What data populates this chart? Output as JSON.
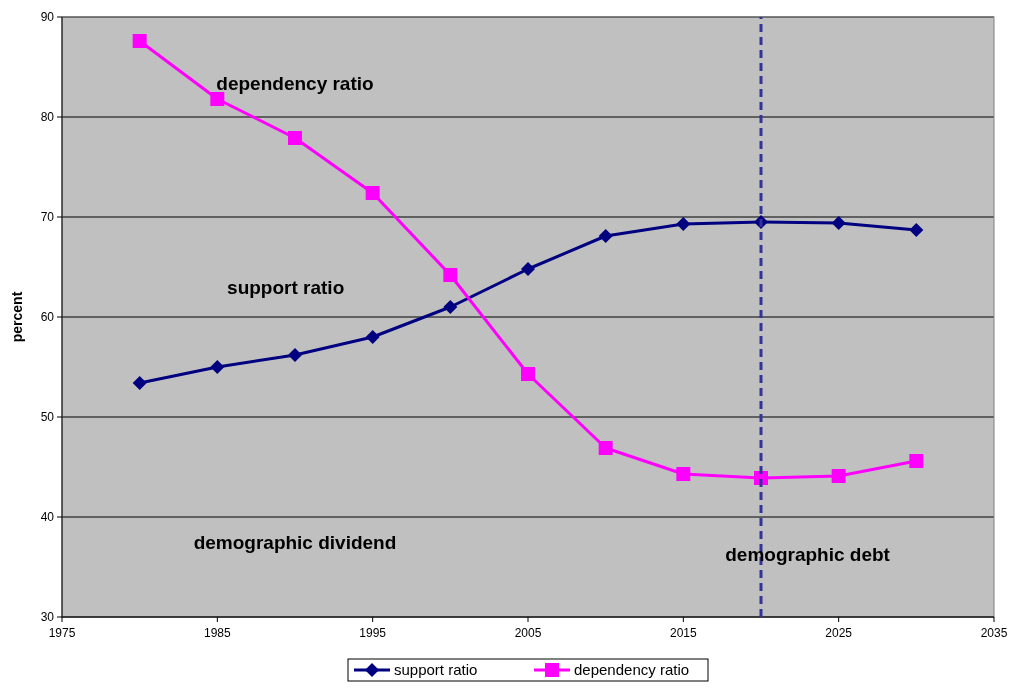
{
  "chart_data": {
    "type": "line",
    "ylabel": "percent",
    "x": [
      1980,
      1985,
      1990,
      1995,
      2000,
      2005,
      2010,
      2015,
      2020,
      2025,
      2030
    ],
    "series": [
      {
        "name": "support ratio",
        "color": "#000080",
        "marker": "diamond",
        "values": [
          53.4,
          55.0,
          56.2,
          58.0,
          61.0,
          64.8,
          68.1,
          69.3,
          69.5,
          69.4,
          68.7
        ]
      },
      {
        "name": "dependency ratio",
        "color": "#ff00ff",
        "marker": "square",
        "values": [
          87.6,
          81.8,
          77.9,
          72.4,
          64.2,
          54.3,
          46.9,
          44.3,
          43.9,
          44.1,
          45.6
        ]
      }
    ],
    "xlim": [
      1975,
      2035
    ],
    "xticks": [
      1975,
      1985,
      1995,
      2005,
      2015,
      2025,
      2035
    ],
    "ylim": [
      30,
      90
    ],
    "yticks": [
      30,
      40,
      50,
      60,
      70,
      80,
      90
    ],
    "grid": "y",
    "legend": "bottom",
    "ref_lines": [
      {
        "axis": "x",
        "value": 2020,
        "color": "#333399",
        "line_style": "dashed"
      }
    ],
    "annotations": [
      "demographic dividend",
      "demographic debt"
    ]
  }
}
